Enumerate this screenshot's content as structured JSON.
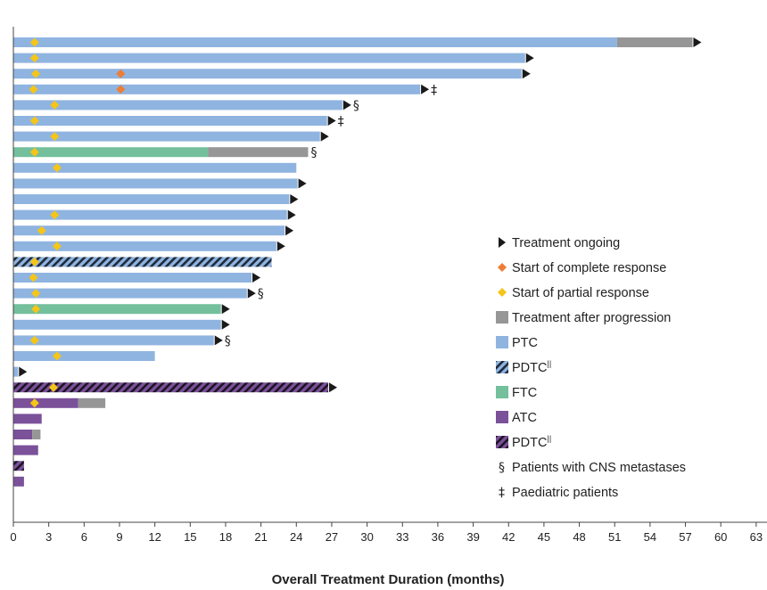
{
  "chart_data": {
    "type": "bar",
    "orientation": "horizontal",
    "xlabel": "Overall Treatment Duration (months)",
    "xlim": [
      0,
      63
    ],
    "xticks": [
      0,
      3,
      6,
      9,
      12,
      15,
      18,
      21,
      24,
      27,
      30,
      33,
      36,
      39,
      42,
      45,
      48,
      51,
      54,
      57,
      60,
      63
    ],
    "colors": {
      "PTC": "#8fb4e0",
      "FTC": "#74bf9c",
      "ATC": "#7b519a",
      "progression": "#969696",
      "complete_response": "#ee7d35",
      "partial_response": "#f5c518",
      "ongoing": "#1a1a1a"
    },
    "patients": [
      {
        "histology": "PTC",
        "duration": 51.2,
        "post_progression": 57.6,
        "ongoing": true,
        "complete_response": null,
        "partial_response": 1.8,
        "mark": ""
      },
      {
        "histology": "PTC",
        "duration": 43.4,
        "post_progression": null,
        "ongoing": true,
        "complete_response": null,
        "partial_response": 1.8,
        "mark": ""
      },
      {
        "histology": "PTC",
        "duration": 43.1,
        "post_progression": null,
        "ongoing": true,
        "complete_response": 9.1,
        "partial_response": 1.9,
        "mark": ""
      },
      {
        "histology": "PTC",
        "duration": 34.5,
        "post_progression": null,
        "ongoing": true,
        "complete_response": 9.1,
        "partial_response": 1.7,
        "mark": "‡"
      },
      {
        "histology": "PTC",
        "duration": 27.9,
        "post_progression": null,
        "ongoing": true,
        "complete_response": null,
        "partial_response": 3.5,
        "mark": "§"
      },
      {
        "histology": "PTC",
        "duration": 26.6,
        "post_progression": null,
        "ongoing": true,
        "complete_response": null,
        "partial_response": 1.8,
        "mark": "‡"
      },
      {
        "histology": "PTC",
        "duration": 26.0,
        "post_progression": null,
        "ongoing": true,
        "complete_response": null,
        "partial_response": 3.5,
        "mark": ""
      },
      {
        "histology": "FTC",
        "duration": 16.5,
        "post_progression": 25.0,
        "ongoing": false,
        "complete_response": null,
        "partial_response": 1.8,
        "mark": "§"
      },
      {
        "histology": "PTC",
        "duration": 24.0,
        "post_progression": null,
        "ongoing": false,
        "complete_response": null,
        "partial_response": 3.7,
        "mark": ""
      },
      {
        "histology": "PTC",
        "duration": 24.1,
        "post_progression": null,
        "ongoing": true,
        "complete_response": null,
        "partial_response": null,
        "mark": ""
      },
      {
        "histology": "PTC",
        "duration": 23.4,
        "post_progression": null,
        "ongoing": true,
        "complete_response": null,
        "partial_response": null,
        "mark": ""
      },
      {
        "histology": "PTC",
        "duration": 23.2,
        "post_progression": null,
        "ongoing": true,
        "complete_response": null,
        "partial_response": 3.5,
        "mark": ""
      },
      {
        "histology": "PTC",
        "duration": 23.0,
        "post_progression": null,
        "ongoing": true,
        "complete_response": null,
        "partial_response": 2.4,
        "mark": ""
      },
      {
        "histology": "PTC",
        "duration": 22.3,
        "post_progression": null,
        "ongoing": true,
        "complete_response": null,
        "partial_response": 3.7,
        "mark": ""
      },
      {
        "histology": "PDTC-PTC",
        "duration": 21.9,
        "post_progression": null,
        "ongoing": false,
        "complete_response": null,
        "partial_response": 1.8,
        "mark": ""
      },
      {
        "histology": "PTC",
        "duration": 20.2,
        "post_progression": null,
        "ongoing": true,
        "complete_response": null,
        "partial_response": 1.7,
        "mark": ""
      },
      {
        "histology": "PTC",
        "duration": 19.8,
        "post_progression": null,
        "ongoing": true,
        "complete_response": null,
        "partial_response": 1.9,
        "mark": "§"
      },
      {
        "histology": "FTC",
        "duration": 17.6,
        "post_progression": null,
        "ongoing": true,
        "complete_response": null,
        "partial_response": 1.9,
        "mark": ""
      },
      {
        "histology": "PTC",
        "duration": 17.6,
        "post_progression": null,
        "ongoing": true,
        "complete_response": null,
        "partial_response": null,
        "mark": ""
      },
      {
        "histology": "PTC",
        "duration": 17.0,
        "post_progression": null,
        "ongoing": true,
        "complete_response": null,
        "partial_response": 1.8,
        "mark": "§"
      },
      {
        "histology": "PTC",
        "duration": 12.0,
        "post_progression": null,
        "ongoing": false,
        "complete_response": null,
        "partial_response": 3.7,
        "mark": ""
      },
      {
        "histology": "PTC",
        "duration": 0.4,
        "post_progression": null,
        "ongoing": true,
        "complete_response": null,
        "partial_response": null,
        "mark": ""
      },
      {
        "histology": "PDTC-ATC",
        "duration": 26.7,
        "post_progression": null,
        "ongoing": true,
        "complete_response": null,
        "partial_response": 3.4,
        "mark": ""
      },
      {
        "histology": "ATC",
        "duration": 5.5,
        "post_progression": 7.8,
        "ongoing": false,
        "complete_response": null,
        "partial_response": 1.8,
        "mark": ""
      },
      {
        "histology": "ATC",
        "duration": 2.4,
        "post_progression": null,
        "ongoing": false,
        "complete_response": null,
        "partial_response": null,
        "mark": ""
      },
      {
        "histology": "ATC",
        "duration": 1.6,
        "post_progression": 2.3,
        "ongoing": false,
        "complete_response": null,
        "partial_response": null,
        "mark": ""
      },
      {
        "histology": "ATC",
        "duration": 2.1,
        "post_progression": null,
        "ongoing": false,
        "complete_response": null,
        "partial_response": null,
        "mark": ""
      },
      {
        "histology": "PDTC-ATC",
        "duration": 0.9,
        "post_progression": null,
        "ongoing": false,
        "complete_response": null,
        "partial_response": null,
        "mark": ""
      },
      {
        "histology": "ATC",
        "duration": 0.9,
        "post_progression": null,
        "ongoing": false,
        "complete_response": null,
        "partial_response": null,
        "mark": ""
      }
    ],
    "legend": [
      {
        "key": "ongoing",
        "label": "Treatment ongoing"
      },
      {
        "key": "complete_response",
        "label": "Start of complete response"
      },
      {
        "key": "partial_response",
        "label": "Start of partial response"
      },
      {
        "key": "progression",
        "label": "Treatment after progression"
      },
      {
        "key": "PTC",
        "label": "PTC"
      },
      {
        "key": "PDTC-PTC",
        "label": "PDTC",
        "sup": "||"
      },
      {
        "key": "FTC",
        "label": "FTC"
      },
      {
        "key": "ATC",
        "label": "ATC"
      },
      {
        "key": "PDTC-ATC",
        "label": "PDTC",
        "sup": "||"
      },
      {
        "key": "cns",
        "symbol": "§",
        "label": "Patients with CNS metastases"
      },
      {
        "key": "paediatric",
        "symbol": "‡",
        "label": "Paediatric patients"
      }
    ]
  }
}
